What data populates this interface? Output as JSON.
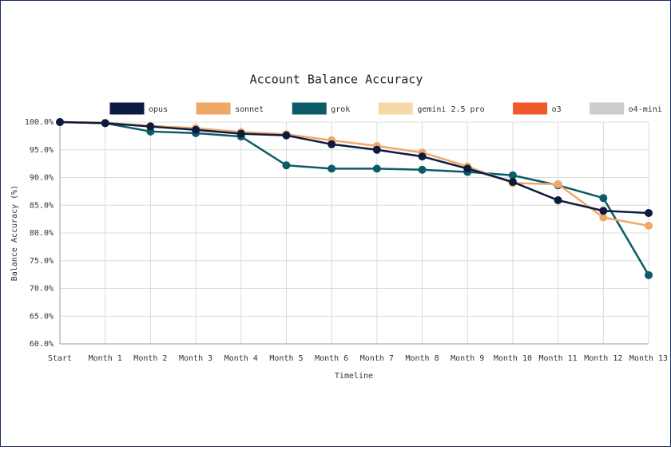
{
  "chart_data": {
    "type": "line",
    "title": "Account Balance Accuracy",
    "x_label": "Timeline",
    "y_label": "Balance Accuracy (%)",
    "categories": [
      "Start",
      "Month 1",
      "Month 2",
      "Month 3",
      "Month 4",
      "Month 5",
      "Month 6",
      "Month 7",
      "Month 8",
      "Month 9",
      "Month 10",
      "Month 11",
      "Month 12",
      "Month 13"
    ],
    "series": [
      {
        "name": "opus",
        "color": "#0d1b40",
        "values": [
          100,
          99.8,
          99.2,
          98.6,
          97.9,
          97.6,
          96.0,
          95.0,
          93.8,
          91.6,
          89.2,
          85.9,
          84.0,
          83.6
        ]
      },
      {
        "name": "sonnet",
        "color": "#f0a868",
        "values": [
          100,
          99.9,
          99.3,
          98.9,
          98.2,
          97.8,
          96.7,
          95.7,
          94.5,
          92.0,
          89.0,
          88.8,
          82.8,
          81.3
        ]
      },
      {
        "name": "grok",
        "color": "#0b5c68",
        "values": [
          100,
          99.8,
          98.3,
          98.0,
          97.4,
          92.2,
          91.6,
          91.6,
          91.4,
          91.0,
          90.4,
          88.6,
          86.3,
          72.4
        ]
      },
      {
        "name": "gemini 2.5 pro",
        "color": "#f5d9a8",
        "values": [
          null,
          null,
          null,
          null,
          null,
          null,
          null,
          null,
          null,
          null,
          null,
          null,
          null,
          null
        ]
      },
      {
        "name": "o3",
        "color": "#f05a28",
        "values": [
          null,
          null,
          null,
          null,
          null,
          null,
          null,
          null,
          null,
          null,
          null,
          null,
          null,
          null
        ]
      },
      {
        "name": "o4-mini",
        "color": "#cccccc",
        "values": [
          null,
          null,
          null,
          null,
          null,
          null,
          null,
          null,
          null,
          null,
          null,
          null,
          null,
          null
        ]
      }
    ],
    "ylim": [
      60,
      100
    ],
    "yticks": [
      {
        "value": 60,
        "label": "60.0%"
      },
      {
        "value": 65,
        "label": "65.0%"
      },
      {
        "value": 70,
        "label": "70.0%"
      },
      {
        "value": 75,
        "label": "75.0%"
      },
      {
        "value": 80,
        "label": "80.0%"
      },
      {
        "value": 85,
        "label": "85.0%"
      },
      {
        "value": 90,
        "label": "90.0%"
      },
      {
        "value": 95,
        "label": "95.0%"
      },
      {
        "value": 100,
        "label": "100.0%"
      }
    ],
    "grid": true,
    "legend": "top"
  }
}
